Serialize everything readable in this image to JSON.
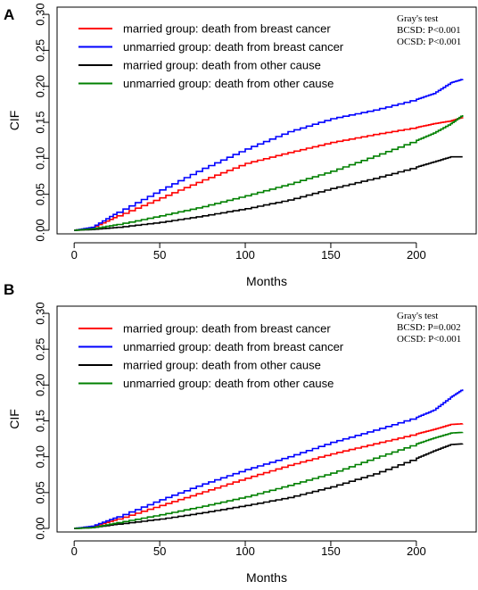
{
  "chart_data": [
    {
      "type": "line",
      "panel_label": "A",
      "xlabel": "Months",
      "ylabel": "CIF",
      "xlim": [
        -10,
        235
      ],
      "ylim": [
        -0.005,
        0.31
      ],
      "xticks": [
        0,
        50,
        100,
        150,
        200
      ],
      "yticks": [
        "0.00",
        "0.05",
        "0.10",
        "0.15",
        "0.20",
        "0.25",
        "0.30"
      ],
      "grid": false,
      "legend_position": "top-left",
      "annotation": [
        "Gray's test",
        "BCSD: P<0.001",
        "OCSD: P<0.001"
      ],
      "series": [
        {
          "name": "married group: death from breast cancer",
          "color": "#ff0000",
          "x": [
            0,
            10,
            25,
            50,
            75,
            100,
            125,
            150,
            175,
            200,
            210,
            220,
            227
          ],
          "y": [
            0,
            0.003,
            0.02,
            0.045,
            0.07,
            0.093,
            0.108,
            0.122,
            0.133,
            0.143,
            0.148,
            0.152,
            0.157
          ]
        },
        {
          "name": "unmarried group: death from breast cancer",
          "color": "#0000ff",
          "x": [
            0,
            10,
            25,
            50,
            75,
            100,
            125,
            150,
            175,
            200,
            210,
            220,
            227
          ],
          "y": [
            0,
            0.004,
            0.025,
            0.056,
            0.086,
            0.113,
            0.137,
            0.155,
            0.167,
            0.182,
            0.19,
            0.205,
            0.21
          ]
        },
        {
          "name": "married group: death from other cause",
          "color": "#000000",
          "x": [
            0,
            10,
            25,
            50,
            75,
            100,
            125,
            150,
            175,
            200,
            210,
            220,
            227
          ],
          "y": [
            0,
            0.001,
            0.004,
            0.011,
            0.02,
            0.03,
            0.042,
            0.058,
            0.072,
            0.088,
            0.095,
            0.102,
            0.102
          ]
        },
        {
          "name": "unmarried group: death from other cause",
          "color": "#008000",
          "x": [
            0,
            10,
            25,
            50,
            75,
            100,
            125,
            150,
            175,
            200,
            210,
            220,
            227
          ],
          "y": [
            0,
            0.002,
            0.008,
            0.02,
            0.033,
            0.048,
            0.064,
            0.082,
            0.103,
            0.125,
            0.135,
            0.148,
            0.16
          ]
        }
      ]
    },
    {
      "type": "line",
      "panel_label": "B",
      "xlabel": "Months",
      "ylabel": "CIF",
      "xlim": [
        -10,
        235
      ],
      "ylim": [
        -0.005,
        0.31
      ],
      "xticks": [
        0,
        50,
        100,
        150,
        200
      ],
      "yticks": [
        "0.00",
        "0.05",
        "0.10",
        "0.15",
        "0.20",
        "0.25",
        "0.30"
      ],
      "grid": false,
      "legend_position": "top-left",
      "annotation": [
        "Gray's test",
        "BCSD: P=0.002",
        "OCSD: P<0.001"
      ],
      "series": [
        {
          "name": "married group: death from breast cancer",
          "color": "#ff0000",
          "x": [
            0,
            10,
            25,
            50,
            75,
            100,
            125,
            150,
            175,
            200,
            210,
            220,
            227
          ],
          "y": [
            0,
            0.002,
            0.013,
            0.032,
            0.051,
            0.07,
            0.088,
            0.104,
            0.118,
            0.132,
            0.138,
            0.145,
            0.146
          ]
        },
        {
          "name": "unmarried group: death from breast cancer",
          "color": "#0000ff",
          "x": [
            0,
            10,
            25,
            50,
            75,
            100,
            125,
            150,
            175,
            200,
            210,
            220,
            227
          ],
          "y": [
            0,
            0.003,
            0.016,
            0.04,
            0.062,
            0.082,
            0.1,
            0.12,
            0.137,
            0.155,
            0.165,
            0.183,
            0.194
          ]
        },
        {
          "name": "married group: death from other cause",
          "color": "#000000",
          "x": [
            0,
            10,
            25,
            50,
            75,
            100,
            125,
            150,
            175,
            200,
            210,
            220,
            227
          ],
          "y": [
            0,
            0.001,
            0.006,
            0.013,
            0.022,
            0.032,
            0.043,
            0.058,
            0.076,
            0.098,
            0.108,
            0.117,
            0.118
          ]
        },
        {
          "name": "unmarried group: death from other cause",
          "color": "#008000",
          "x": [
            0,
            10,
            25,
            50,
            75,
            100,
            125,
            150,
            175,
            200,
            210,
            220,
            227
          ],
          "y": [
            0,
            0.001,
            0.008,
            0.019,
            0.031,
            0.044,
            0.06,
            0.077,
            0.098,
            0.118,
            0.126,
            0.133,
            0.134
          ]
        }
      ]
    }
  ]
}
